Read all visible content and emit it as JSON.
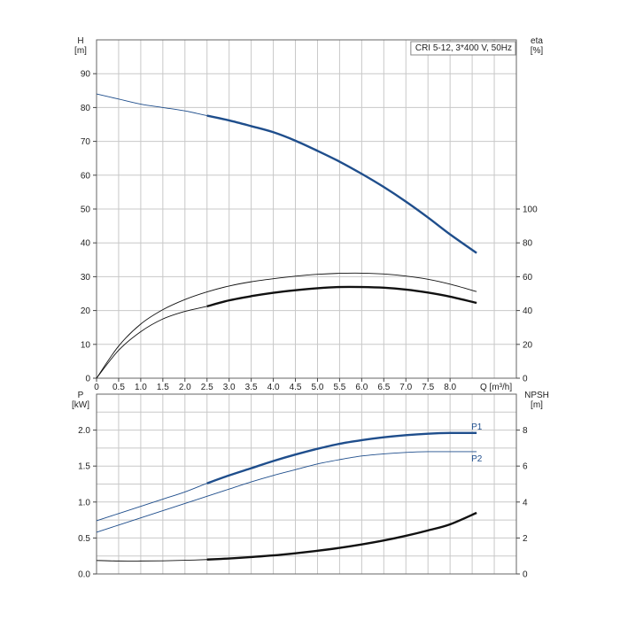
{
  "chart_data": [
    {
      "type": "line",
      "legend_box": "CRI 5-12, 3*400 V, 50Hz",
      "x_axis": {
        "label": "Q [m³/h]",
        "range": [
          0,
          9.5
        ],
        "ticks": [
          "0",
          "0.5",
          "1.0",
          "1.5",
          "2.0",
          "2.5",
          "3.0",
          "3.5",
          "4.0",
          "4.5",
          "5.0",
          "5.5",
          "6.0",
          "6.5",
          "7.0",
          "7.5",
          "8.0"
        ]
      },
      "left_axis": {
        "label": "H",
        "unit": "[m]",
        "range": [
          0,
          100
        ],
        "ticks": [
          "0",
          "10",
          "20",
          "30",
          "40",
          "50",
          "60",
          "70",
          "80",
          "90"
        ]
      },
      "right_axis": {
        "label": "eta",
        "unit": "[%]",
        "range": [
          0,
          200
        ],
        "ticks": [
          "0",
          "20",
          "40",
          "60",
          "80",
          "100"
        ]
      },
      "grid": true,
      "series": [
        {
          "axis": "left",
          "color": "#1f4e8c",
          "emphasis_from": 2.5,
          "x": [
            0,
            0.5,
            1,
            1.5,
            2,
            2.5,
            3,
            3.5,
            4,
            4.5,
            5,
            5.5,
            6,
            6.5,
            7,
            7.5,
            8,
            8.6
          ],
          "y": [
            84,
            82.5,
            81,
            80,
            79,
            77.6,
            76.2,
            74.5,
            72.7,
            70.2,
            67.2,
            64,
            60.4,
            56.5,
            52.2,
            47.5,
            42.5,
            37
          ]
        },
        {
          "axis": "right",
          "color": "#111111",
          "emphasis_from": 9,
          "x": [
            0,
            0.5,
            1,
            1.5,
            2,
            2.5,
            3,
            3.5,
            4,
            4.5,
            5,
            5.5,
            6,
            6.5,
            7,
            7.5,
            8,
            8.6
          ],
          "y": [
            0,
            19,
            32,
            40.5,
            46.5,
            51,
            54.5,
            57,
            58.8,
            60.3,
            61.4,
            62,
            62.1,
            61.6,
            60.4,
            58.5,
            55.6,
            51.2
          ]
        },
        {
          "axis": "right",
          "color": "#111111",
          "emphasis_from": 2.5,
          "x": [
            0,
            0.5,
            1,
            1.5,
            2,
            2.5,
            3,
            3.5,
            4,
            4.5,
            5,
            5.5,
            6,
            6.5,
            7,
            7.5,
            8,
            8.6
          ],
          "y": [
            0,
            16.5,
            27.5,
            35,
            39.5,
            42.5,
            46,
            48.5,
            50.5,
            52,
            53.2,
            53.9,
            53.9,
            53.5,
            52.4,
            50.6,
            48.2,
            44.5
          ]
        }
      ]
    },
    {
      "type": "line",
      "x_axis": {
        "range": [
          0,
          9.5
        ]
      },
      "left_axis": {
        "label": "P",
        "unit": "[kW]",
        "range": [
          0,
          2.5
        ],
        "ticks": [
          "0.0",
          "0.5",
          "1.0",
          "1.5",
          "2.0"
        ]
      },
      "right_axis": {
        "label": "NPSH",
        "unit": "[m]",
        "range": [
          0,
          10
        ],
        "ticks": [
          "0",
          "2",
          "4",
          "6",
          "8"
        ]
      },
      "grid": true,
      "series": [
        {
          "name": "P1",
          "axis": "left",
          "color": "#1f4e8c",
          "emphasis_from": 2.5,
          "x": [
            0,
            0.5,
            1,
            1.5,
            2,
            2.5,
            3,
            3.5,
            4,
            4.5,
            5,
            5.5,
            6,
            6.5,
            7,
            7.5,
            8,
            8.6
          ],
          "y": [
            0.74,
            0.84,
            0.94,
            1.04,
            1.14,
            1.26,
            1.37,
            1.47,
            1.57,
            1.66,
            1.74,
            1.81,
            1.86,
            1.9,
            1.93,
            1.95,
            1.96,
            1.96
          ]
        },
        {
          "name": "P2",
          "axis": "left",
          "color": "#1f4e8c",
          "emphasis_from": 9,
          "x": [
            0,
            0.5,
            1,
            1.5,
            2,
            2.5,
            3,
            3.5,
            4,
            4.5,
            5,
            5.5,
            6,
            6.5,
            7,
            7.5,
            8,
            8.6
          ],
          "y": [
            0.58,
            0.68,
            0.78,
            0.88,
            0.98,
            1.08,
            1.18,
            1.28,
            1.37,
            1.45,
            1.53,
            1.59,
            1.64,
            1.67,
            1.69,
            1.7,
            1.7,
            1.7
          ]
        },
        {
          "axis": "right",
          "color": "#111111",
          "emphasis_from": 2.5,
          "x": [
            0,
            0.5,
            1,
            1.5,
            2,
            2.5,
            3,
            3.5,
            4,
            4.5,
            5,
            5.5,
            6,
            6.5,
            7,
            7.5,
            8,
            8.6
          ],
          "y": [
            0.75,
            0.72,
            0.72,
            0.73,
            0.76,
            0.8,
            0.86,
            0.94,
            1.03,
            1.15,
            1.29,
            1.45,
            1.64,
            1.86,
            2.12,
            2.42,
            2.76,
            3.4
          ]
        }
      ]
    }
  ]
}
